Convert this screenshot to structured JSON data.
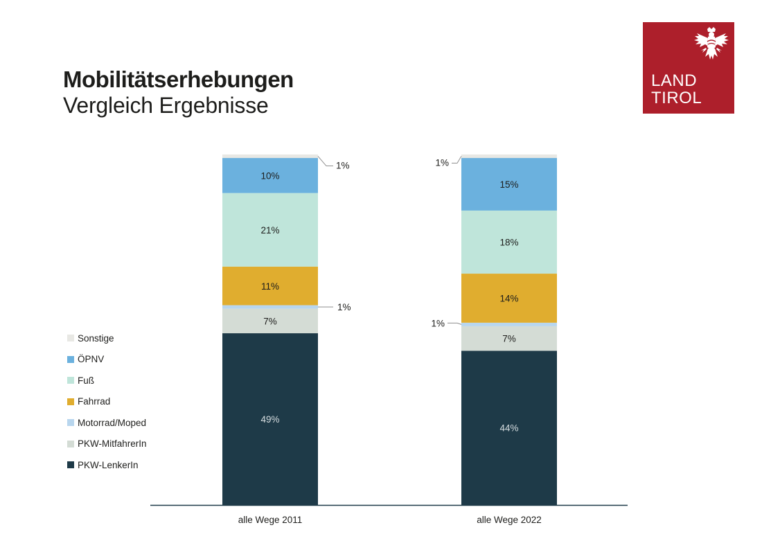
{
  "header": {
    "title": "Mobilitätserhebungen",
    "subtitle": "Vergleich Ergebnisse"
  },
  "logo": {
    "line1": "LAND",
    "line2": "TIROL",
    "icon": "tyrolean-eagle-icon",
    "background_color": "#ad1f2b"
  },
  "chart_data": {
    "type": "bar",
    "stacked": true,
    "title": "Mobilitätserhebungen – Vergleich Ergebnisse",
    "xlabel": "",
    "ylabel": "",
    "ylim": [
      0,
      100
    ],
    "grid": false,
    "legend_position": "left",
    "categories": [
      "alle Wege 2011",
      "alle Wege 2022"
    ],
    "series": [
      {
        "name": "PKW-LenkerIn",
        "color": "#1e3a48",
        "label_color": "#d6dde0",
        "values": [
          49,
          44
        ],
        "labels": [
          "49%",
          "44%"
        ]
      },
      {
        "name": "PKW-MitfahrerIn",
        "color": "#d4dcd5",
        "label_color": "#1d1d1b",
        "values": [
          7,
          7
        ],
        "labels": [
          "7%",
          "7%"
        ]
      },
      {
        "name": "Motorrad/Moped",
        "color": "#b8d6ee",
        "label_color": "#1d1d1b",
        "values": [
          1,
          1
        ],
        "labels": [
          "1%",
          "1%"
        ],
        "callout": true
      },
      {
        "name": "Fahrrad",
        "color": "#e0ad2f",
        "label_color": "#1d1d1b",
        "values": [
          11,
          14
        ],
        "labels": [
          "11%",
          "14%"
        ]
      },
      {
        "name": "Fuß",
        "color": "#bfe5da",
        "label_color": "#1d1d1b",
        "values": [
          21,
          18
        ],
        "labels": [
          "21%",
          "18%"
        ]
      },
      {
        "name": "ÖPNV",
        "color": "#6bb1de",
        "label_color": "#1d1d1b",
        "values": [
          10,
          15
        ],
        "labels": [
          "10%",
          "15%"
        ]
      },
      {
        "name": "Sonstige",
        "color": "#e8e8e4",
        "label_color": "#1d1d1b",
        "values": [
          1,
          1
        ],
        "labels": [
          "1%",
          "1%"
        ],
        "callout": true
      }
    ],
    "legend_order": [
      "Sonstige",
      "ÖPNV",
      "Fuß",
      "Fahrrad",
      "Motorrad/Moped",
      "PKW-MitfahrerIn",
      "PKW-LenkerIn"
    ],
    "axis_color": "#1e3a48"
  }
}
